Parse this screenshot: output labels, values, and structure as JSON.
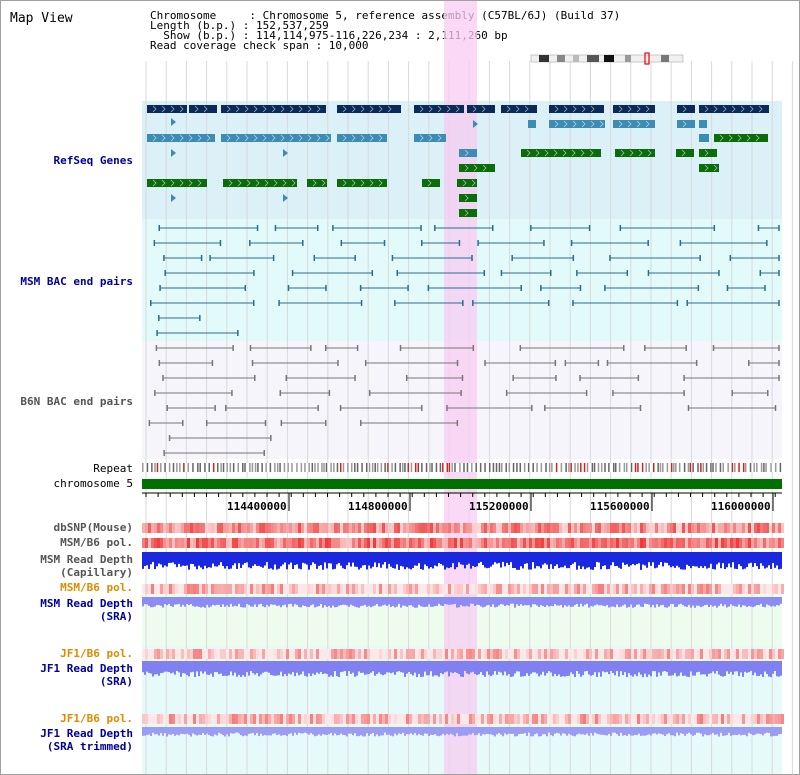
{
  "title": "Map View",
  "info": {
    "chromosome": "Chromosome     : Chromosome 5, reference assembly (C57BL/6J) (Build 37)",
    "length": "Length (b.p.) : 152,537,259",
    "show": "  Show (b.p.) : 114,114,975-116,226,234 : 2,111,260 bp",
    "span": "Read coverage check span : 10,000"
  },
  "tracks": {
    "refseq": "RefSeq Genes",
    "msm_bac": "MSM BAC end pairs",
    "b6n_bac": "B6N BAC end pairs",
    "repeat": "Repeat",
    "chromosome": "chromosome 5",
    "dbsnp": "dbSNP(Mouse)",
    "msm_b6_pol_1": "MSM/B6 pol.",
    "msm_depth_cap_1": "MSM Read Depth",
    "msm_depth_cap_2": "(Capillary)",
    "msm_b6_pol_2": "MSM/B6 pol.",
    "msm_depth_sra_1": "MSM Read Depth",
    "msm_depth_sra_2": "(SRA)",
    "jf1_pol_1": "JF1/B6 pol.",
    "jf1_depth_1": "JF1 Read Depth",
    "jf1_depth_2": "(SRA)",
    "jf1_pol_2": "JF1/B6 pol.",
    "jf1_trim_1": "JF1 Read Depth",
    "jf1_trim_2": "(SRA trimmed)"
  },
  "ticks": [
    "114400000",
    "114800000",
    "115200000",
    "115600000",
    "116000000"
  ],
  "colors": {
    "navy_label": "#00009c",
    "orange_label": "#e08a00",
    "gray_label": "#555555",
    "gene_dark": "#0b2a57",
    "gene_mid": "#3c8cb4",
    "gene_green": "#0a6d0a",
    "highlight": "#f7ccf2"
  }
}
